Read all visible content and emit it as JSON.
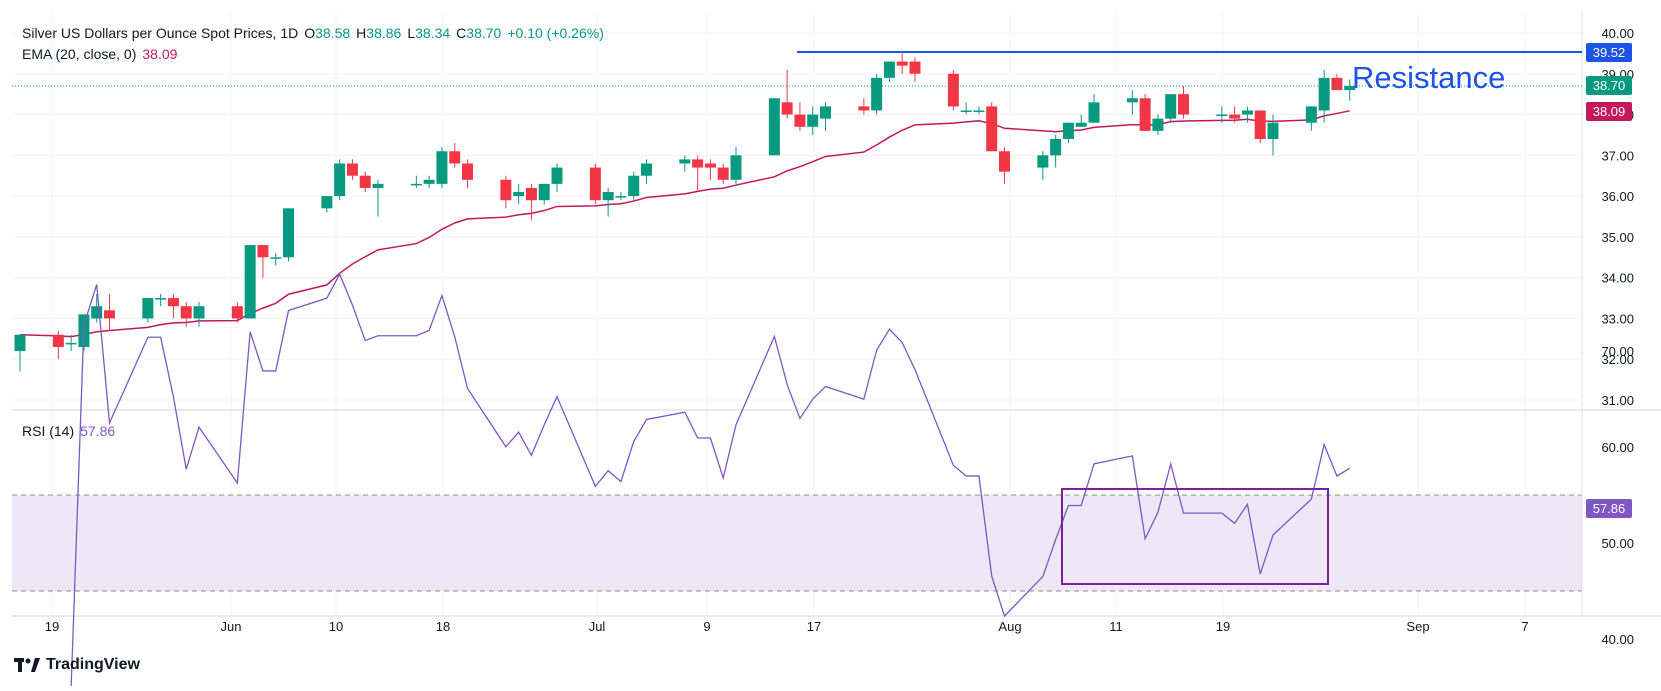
{
  "legend": {
    "title": "Silver US Dollars per Ounce Spot Prices, 1D",
    "o_label": "O",
    "o_value": "38.58",
    "h_label": "H",
    "h_value": "38.86",
    "l_label": "L",
    "l_value": "38.34",
    "c_label": "C",
    "c_value": "38.70",
    "change": "+0.10 (+0.26%)",
    "ema_label": "EMA (20, close, 0)",
    "ema_value": "38.09",
    "rsi_label": "RSI (14)",
    "rsi_value": "57.86"
  },
  "annotation": {
    "resistance_label": "Resistance",
    "resistance_level": 39.52
  },
  "badges": {
    "resistance": "39.52",
    "last_close": "38.70",
    "ema": "38.09",
    "rsi": "57.86"
  },
  "brand": {
    "name": "TradingView"
  },
  "colors": {
    "up": "#089981",
    "down": "#f23645",
    "ema": "#c2185b",
    "rsi": "#7e57c2",
    "resistance": "#1e53e5",
    "rsi_band": "#ede7f6"
  },
  "chart_data": [
    {
      "type": "candlestick",
      "ylim": [
        31.0,
        40.0
      ],
      "yticks": [
        "31.00",
        "32.00",
        "33.00",
        "34.00",
        "35.00",
        "36.00",
        "37.00",
        "38.00",
        "39.00",
        "40.00"
      ],
      "xtick_labels": [
        "19",
        "Jun",
        "10",
        "18",
        "Jul",
        "9",
        "17",
        "Aug",
        "11",
        "19",
        "Sep",
        "7"
      ],
      "ohlc": [
        [
          32.2,
          32.6,
          31.7,
          32.6
        ],
        [
          32.6,
          32.7,
          32.0,
          32.3
        ],
        [
          32.4,
          32.6,
          32.2,
          32.4
        ],
        [
          32.3,
          33.1,
          32.2,
          33.1
        ],
        [
          33.0,
          33.6,
          32.9,
          33.3
        ],
        [
          33.2,
          33.6,
          32.7,
          33.0
        ],
        [
          33.0,
          33.5,
          32.9,
          33.5
        ],
        [
          33.5,
          33.6,
          33.3,
          33.5
        ],
        [
          33.5,
          33.6,
          33.0,
          33.3
        ],
        [
          33.3,
          33.4,
          32.8,
          33.0
        ],
        [
          33.0,
          33.4,
          32.8,
          33.3
        ],
        [
          33.3,
          33.4,
          32.9,
          33.0
        ],
        [
          33.0,
          34.8,
          33.0,
          34.8
        ],
        [
          34.8,
          34.8,
          34.0,
          34.5
        ],
        [
          34.5,
          34.6,
          34.3,
          34.5
        ],
        [
          34.5,
          35.7,
          34.4,
          35.7
        ],
        [
          35.7,
          36.0,
          35.6,
          36.0
        ],
        [
          36.0,
          36.9,
          35.9,
          36.8
        ],
        [
          36.8,
          36.9,
          36.4,
          36.5
        ],
        [
          36.5,
          36.6,
          36.1,
          36.2
        ],
        [
          36.2,
          36.4,
          35.5,
          36.3
        ],
        [
          36.3,
          36.5,
          36.2,
          36.3
        ],
        [
          36.3,
          36.5,
          36.2,
          36.4
        ],
        [
          36.3,
          37.2,
          36.2,
          37.1
        ],
        [
          37.1,
          37.3,
          36.7,
          36.8
        ],
        [
          36.8,
          36.9,
          36.2,
          36.4
        ],
        [
          36.4,
          36.5,
          35.7,
          35.9
        ],
        [
          36.0,
          36.3,
          35.8,
          36.1
        ],
        [
          36.2,
          36.3,
          35.4,
          35.9
        ],
        [
          35.9,
          36.3,
          35.8,
          36.3
        ],
        [
          36.3,
          36.8,
          36.1,
          36.7
        ],
        [
          36.7,
          36.8,
          35.8,
          35.9
        ],
        [
          35.9,
          36.2,
          35.5,
          36.1
        ],
        [
          36.0,
          36.1,
          35.9,
          36.0
        ],
        [
          36.0,
          36.6,
          35.9,
          36.5
        ],
        [
          36.5,
          36.9,
          36.3,
          36.8
        ],
        [
          36.8,
          37.0,
          36.6,
          36.9
        ],
        [
          36.9,
          37.0,
          36.1,
          36.7
        ],
        [
          36.8,
          36.9,
          36.4,
          36.7
        ],
        [
          36.7,
          36.8,
          36.3,
          36.4
        ],
        [
          36.4,
          37.2,
          36.3,
          37.0
        ],
        [
          37.0,
          38.4,
          37.0,
          38.4
        ],
        [
          38.3,
          39.1,
          37.9,
          38.0
        ],
        [
          38.0,
          38.3,
          37.6,
          37.7
        ],
        [
          37.7,
          38.2,
          37.5,
          38.0
        ],
        [
          37.9,
          38.3,
          37.6,
          38.2
        ],
        [
          38.2,
          38.4,
          38.0,
          38.1
        ],
        [
          38.1,
          39.0,
          38.0,
          38.9
        ],
        [
          38.9,
          39.3,
          38.8,
          39.3
        ],
        [
          39.3,
          39.5,
          39.0,
          39.2
        ],
        [
          39.3,
          39.4,
          38.8,
          39.0
        ],
        [
          39.0,
          39.1,
          38.1,
          38.2
        ],
        [
          38.1,
          38.3,
          38.0,
          38.1
        ],
        [
          38.1,
          38.2,
          38.0,
          38.1
        ],
        [
          38.2,
          38.3,
          37.1,
          37.1
        ],
        [
          37.1,
          37.2,
          36.3,
          36.6
        ],
        [
          36.7,
          37.1,
          36.4,
          37.0
        ],
        [
          37.0,
          37.5,
          36.7,
          37.4
        ],
        [
          37.4,
          37.8,
          37.3,
          37.8
        ],
        [
          37.7,
          38.0,
          37.7,
          37.8
        ],
        [
          37.8,
          38.5,
          37.8,
          38.3
        ],
        [
          38.3,
          38.6,
          38.0,
          38.4
        ],
        [
          38.4,
          38.5,
          37.6,
          37.6
        ],
        [
          37.6,
          38.0,
          37.5,
          37.9
        ],
        [
          37.9,
          38.5,
          37.8,
          38.5
        ],
        [
          38.5,
          38.7,
          37.9,
          38.0
        ],
        [
          38.0,
          38.2,
          37.8,
          38.0
        ],
        [
          38.0,
          38.2,
          37.8,
          37.9
        ],
        [
          38.0,
          38.2,
          37.8,
          38.1
        ],
        [
          38.1,
          38.1,
          37.3,
          37.4
        ],
        [
          37.4,
          38.0,
          37.0,
          37.8
        ],
        [
          37.8,
          38.2,
          37.6,
          38.2
        ],
        [
          38.1,
          39.1,
          37.8,
          38.9
        ],
        [
          38.9,
          39.0,
          38.6,
          38.6
        ],
        [
          38.6,
          38.86,
          38.34,
          38.7
        ]
      ],
      "ema_last": 38.09
    },
    {
      "type": "line",
      "title": "RSI (14)",
      "ylim": [
        40,
        75
      ],
      "yticks": [
        "40.00",
        "50.00",
        "60.00",
        "70.00"
      ],
      "band": [
        40,
        60
      ],
      "last": 57.86
    }
  ]
}
